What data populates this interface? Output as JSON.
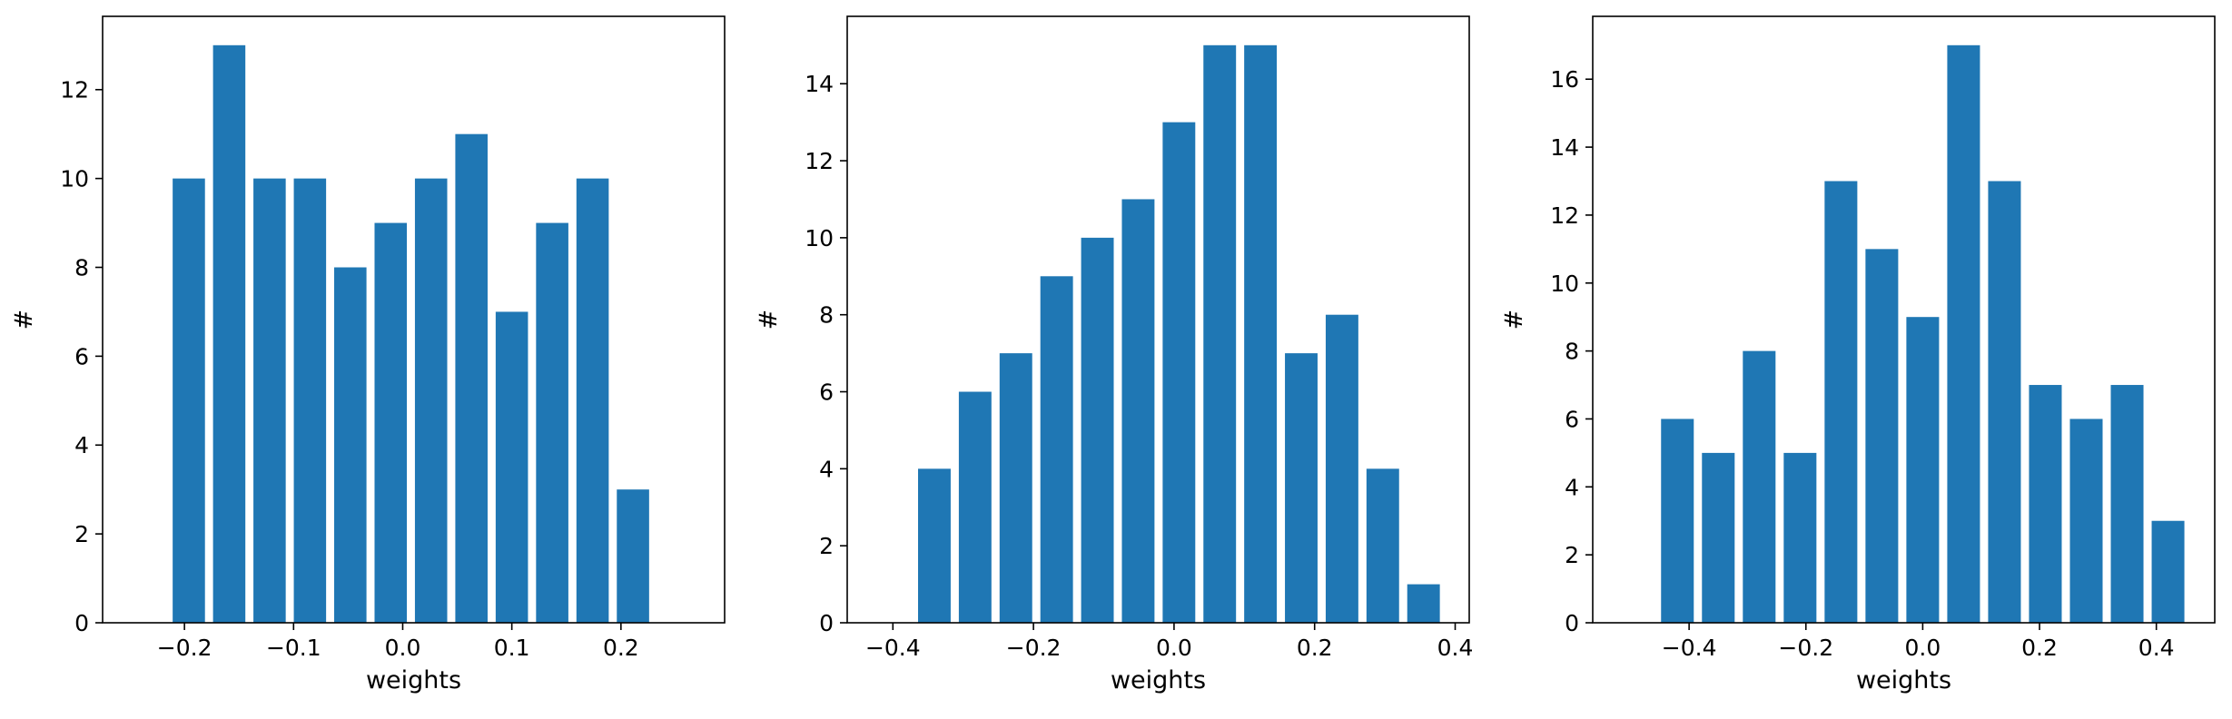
{
  "figure": {
    "bar_color": "#1f77b4",
    "panel_count": 3
  },
  "chart_data": [
    {
      "type": "bar",
      "xlabel": "weights",
      "ylabel": "#",
      "xlim": [
        -0.275,
        0.295
      ],
      "ylim": [
        0,
        13.65
      ],
      "xticks": [
        -0.2,
        -0.1,
        0.0,
        0.1,
        0.2
      ],
      "xtick_labels": [
        "−0.2",
        "−0.1",
        "0.0",
        "0.1",
        "0.2"
      ],
      "yticks": [
        0,
        2,
        4,
        6,
        8,
        10,
        12
      ],
      "ytick_labels": [
        "0",
        "2",
        "4",
        "6",
        "8",
        "10",
        "12"
      ],
      "bin_width": 0.037,
      "bar_width": 0.0296,
      "x": [
        -0.196,
        -0.159,
        -0.122,
        -0.085,
        -0.048,
        -0.011,
        0.026,
        0.063,
        0.1,
        0.137,
        0.174,
        0.211
      ],
      "values": [
        10,
        13,
        10,
        10,
        8,
        9,
        10,
        11,
        7,
        9,
        10,
        3
      ],
      "grid": false,
      "legend": "none"
    },
    {
      "type": "bar",
      "xlabel": "weights",
      "ylabel": "#",
      "xlim": [
        -0.465,
        0.42
      ],
      "ylim": [
        0,
        15.75
      ],
      "xticks": [
        -0.4,
        -0.2,
        0.0,
        0.2,
        0.4
      ],
      "xtick_labels": [
        "−0.4",
        "−0.2",
        "0.0",
        "0.2",
        "0.4"
      ],
      "yticks": [
        0,
        2,
        4,
        6,
        8,
        10,
        12,
        14
      ],
      "ytick_labels": [
        "0",
        "2",
        "4",
        "6",
        "8",
        "10",
        "12",
        "14"
      ],
      "bin_width": 0.058,
      "bar_width": 0.0464,
      "x": [
        -0.341,
        -0.283,
        -0.225,
        -0.167,
        -0.109,
        -0.051,
        0.007,
        0.065,
        0.123,
        0.181,
        0.239,
        0.297,
        0.355
      ],
      "values": [
        4,
        6,
        7,
        9,
        10,
        11,
        13,
        15,
        15,
        7,
        8,
        4,
        1
      ],
      "grid": false,
      "legend": "none"
    },
    {
      "type": "bar",
      "xlabel": "weights",
      "ylabel": "#",
      "xlim": [
        -0.565,
        0.5
      ],
      "ylim": [
        0,
        17.85
      ],
      "xticks": [
        -0.4,
        -0.2,
        0.0,
        0.2,
        0.4
      ],
      "xtick_labels": [
        "−0.4",
        "−0.2",
        "0.0",
        "0.2",
        "0.4"
      ],
      "yticks": [
        0,
        2,
        4,
        6,
        8,
        10,
        12,
        14,
        16
      ],
      "ytick_labels": [
        "0",
        "2",
        "4",
        "6",
        "8",
        "10",
        "12",
        "14",
        "16"
      ],
      "bin_width": 0.07,
      "bar_width": 0.056,
      "x": [
        -0.42,
        -0.35,
        -0.28,
        -0.21,
        -0.14,
        -0.07,
        0.0,
        0.07,
        0.14,
        0.21,
        0.28,
        0.35,
        0.42
      ],
      "values": [
        6,
        5,
        8,
        5,
        13,
        11,
        9,
        17,
        13,
        7,
        6,
        7,
        3
      ],
      "grid": false,
      "legend": "none"
    }
  ]
}
